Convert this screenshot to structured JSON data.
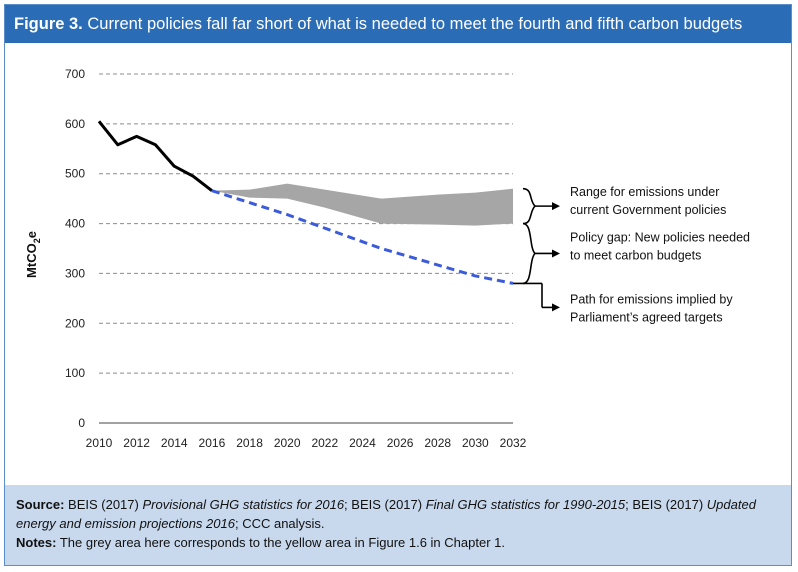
{
  "header": {
    "figure_label": "Figure 3.",
    "title": "Current policies fall far short of what is needed to meet the fourth and fifth carbon budgets"
  },
  "chart_data": {
    "type": "line",
    "title": "Current policies fall far short of what is needed to meet the fourth and fifth carbon budgets",
    "ylabel": "MtCO2e",
    "ylabel_main": "MtCO",
    "ylabel_sub": "2",
    "ylabel_suffix": "e",
    "xlabel": "",
    "xlim": [
      2010,
      2032
    ],
    "ylim": [
      0,
      700
    ],
    "x_ticks": [
      "2010",
      "2012",
      "2014",
      "2016",
      "2018",
      "2020",
      "2022",
      "2024",
      "2026",
      "2028",
      "2030",
      "2032"
    ],
    "y_ticks": [
      "0",
      "100",
      "200",
      "300",
      "400",
      "500",
      "600",
      "700"
    ],
    "grid": "horizontal dashed",
    "historic": {
      "color": "#000000",
      "x": [
        2010,
        2011,
        2012,
        2013,
        2014,
        2015,
        2016
      ],
      "y": [
        605,
        558,
        575,
        558,
        515,
        495,
        466
      ]
    },
    "target_path": {
      "color": "#3b5bdb",
      "x": [
        2016,
        2020,
        2025,
        2030,
        2032
      ],
      "y": [
        466,
        418,
        350,
        295,
        280
      ]
    },
    "range_band": {
      "color": "#a6a6a6",
      "x": [
        2016,
        2018,
        2020,
        2022,
        2025,
        2028,
        2030,
        2032
      ],
      "upper": [
        466,
        468,
        480,
        468,
        450,
        458,
        462,
        470
      ],
      "lower": [
        466,
        452,
        450,
        432,
        400,
        398,
        396,
        400
      ]
    },
    "annotations": [
      {
        "lines": [
          "Range for emissions under",
          "current Government policies"
        ],
        "y_range": [
          400,
          470
        ]
      },
      {
        "lines": [
          "Policy gap: New policies needed",
          "to meet carbon budgets"
        ],
        "y_range": [
          280,
          400
        ]
      },
      {
        "lines": [
          "Path for emissions implied by",
          "Parliament’s agreed targets"
        ],
        "y_value": 280
      }
    ]
  },
  "footer": {
    "source_label": "Source:",
    "source_parts": [
      {
        "text": "BEIS (2017) ",
        "italic": false
      },
      {
        "text": "Provisional GHG statistics for 2016",
        "italic": true
      },
      {
        "text": "; BEIS (2017) ",
        "italic": false
      },
      {
        "text": "Final GHG statistics for 1990-2015",
        "italic": true
      },
      {
        "text": "; BEIS (2017) ",
        "italic": false
      },
      {
        "text": "Updated energy and emission projections 2016",
        "italic": true
      },
      {
        "text": "; CCC analysis.",
        "italic": false
      }
    ],
    "notes_label": "Notes:",
    "notes_text": "The grey area here corresponds to the yellow area in Figure 1.6 in Chapter 1."
  }
}
